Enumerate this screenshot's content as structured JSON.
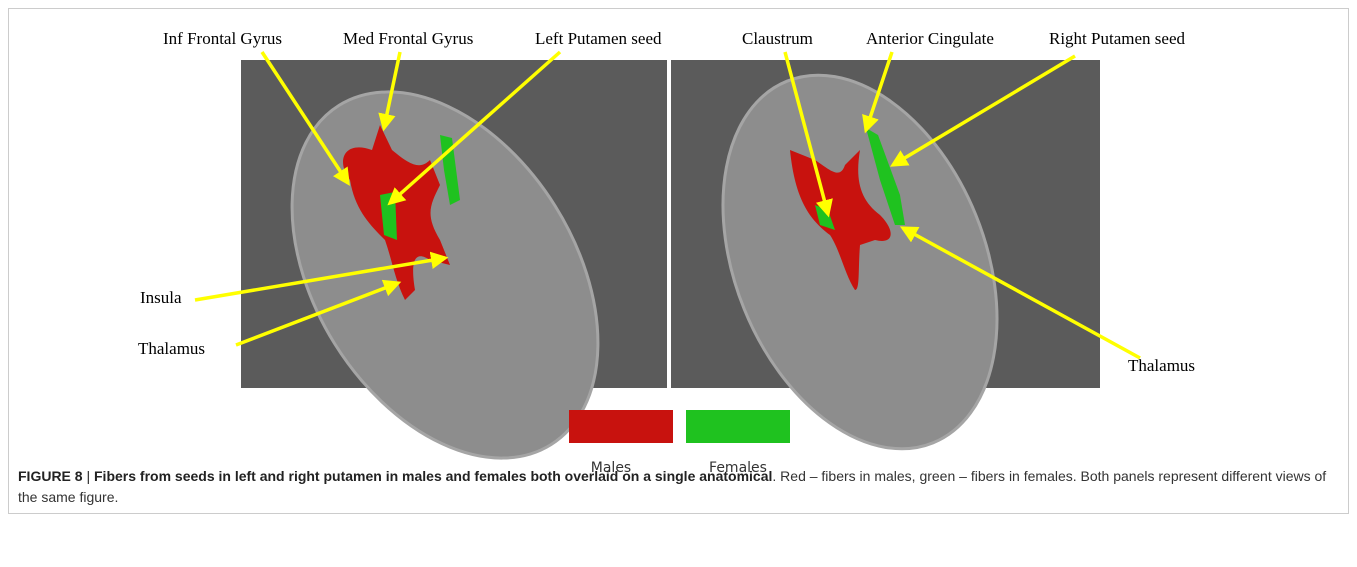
{
  "figure": {
    "panels": [
      {
        "labels": [
          "Inf Frontal Gyrus",
          "Med Frontal Gyrus",
          "Left Putamen seed",
          "Insula",
          "Thalamus"
        ]
      },
      {
        "labels": [
          "Claustrum",
          "Anterior Cingulate",
          "Right Putamen seed",
          "Thalamus"
        ]
      }
    ],
    "legend": [
      {
        "label": "Males",
        "color": "#c8120e"
      },
      {
        "label": "Females",
        "color": "#1fc21f"
      }
    ],
    "caption": {
      "label": "FIGURE 8",
      "separator": "|",
      "title": "Fibers from seeds in left and right putamen in males and females both overlaid on a single anatomical",
      "text": ". Red – fibers in males, green – fibers in females. Both panels represent different views of the same figure."
    }
  }
}
